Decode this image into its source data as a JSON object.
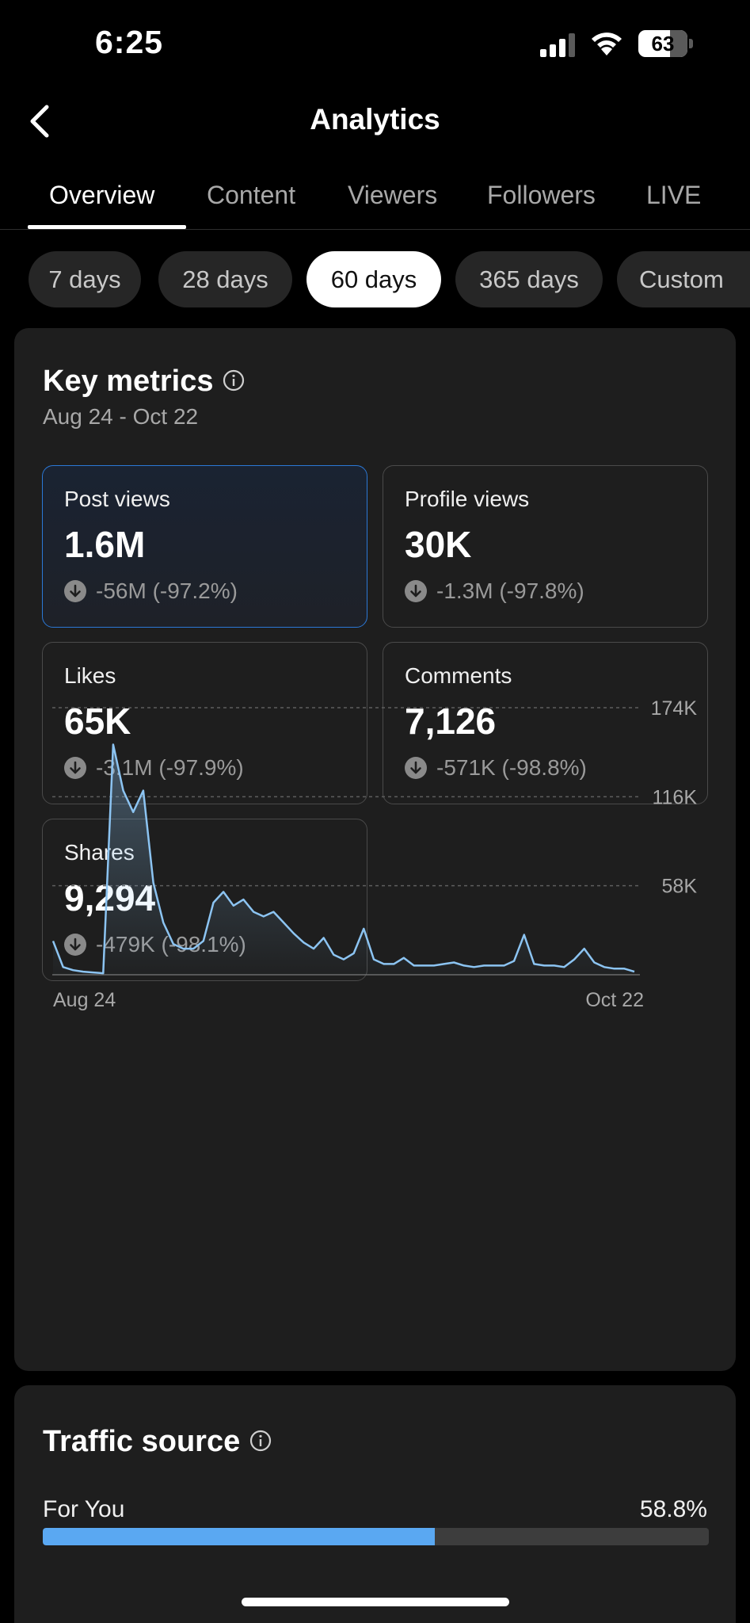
{
  "status_bar": {
    "time": "6:25",
    "battery": "63"
  },
  "header": {
    "title": "Analytics"
  },
  "tabs": [
    {
      "label": "Overview",
      "active": true
    },
    {
      "label": "Content"
    },
    {
      "label": "Viewers"
    },
    {
      "label": "Followers"
    },
    {
      "label": "LIVE"
    }
  ],
  "ranges": [
    {
      "label": "7 days"
    },
    {
      "label": "28 days"
    },
    {
      "label": "60 days",
      "active": true
    },
    {
      "label": "365 days"
    },
    {
      "label": "Custom"
    }
  ],
  "key_metrics": {
    "title": "Key metrics",
    "date_range": "Aug 24 - Oct 22",
    "metrics": [
      {
        "label": "Post views",
        "value": "1.6M",
        "delta": "-56M (-97.2%)",
        "selected": true
      },
      {
        "label": "Profile views",
        "value": "30K",
        "delta": "-1.3M (-97.8%)"
      },
      {
        "label": "Likes",
        "value": "65K",
        "delta": "-3.1M (-97.9%)"
      },
      {
        "label": "Comments",
        "value": "7,126",
        "delta": "-571K (-98.8%)"
      },
      {
        "label": "Shares",
        "value": "9,294",
        "delta": "-479K (-98.1%)"
      }
    ]
  },
  "chart_data": {
    "type": "area",
    "series": [
      {
        "name": "Post views",
        "values": [
          22000,
          5000,
          3000,
          2000,
          1500,
          1000,
          150000,
          120000,
          106000,
          120000,
          60000,
          34000,
          20000,
          17000,
          17000,
          22000,
          47000,
          54000,
          45000,
          49000,
          41000,
          38000,
          41000,
          34000,
          27000,
          21000,
          17000,
          24000,
          13000,
          10000,
          14000,
          30000,
          10000,
          7000,
          7000,
          11000,
          6000,
          6000,
          6000,
          7000,
          8000,
          6000,
          5000,
          6000,
          6000,
          6000,
          9000,
          26000,
          7000,
          6000,
          6000,
          5000,
          10000,
          17000,
          8000,
          5000,
          4000,
          4000,
          2000
        ]
      }
    ],
    "x_tick_labels": [
      "Aug 24",
      "Oct 22"
    ],
    "y_tick_labels": [
      "174K",
      "116K",
      "58K"
    ],
    "y_ticks": [
      174000,
      116000,
      58000
    ],
    "ylim": [
      0,
      174000
    ],
    "line_color": "#8cc4f2",
    "grid": "dashed horizontal"
  },
  "traffic_source": {
    "title": "Traffic source",
    "items": [
      {
        "label": "For You",
        "percent": "58.8%",
        "fraction": 0.588
      }
    ]
  },
  "colors": {
    "accent_blue": "#5aa8f2",
    "selected_border": "#2b78d6",
    "card_bg": "#1e1e1e"
  }
}
